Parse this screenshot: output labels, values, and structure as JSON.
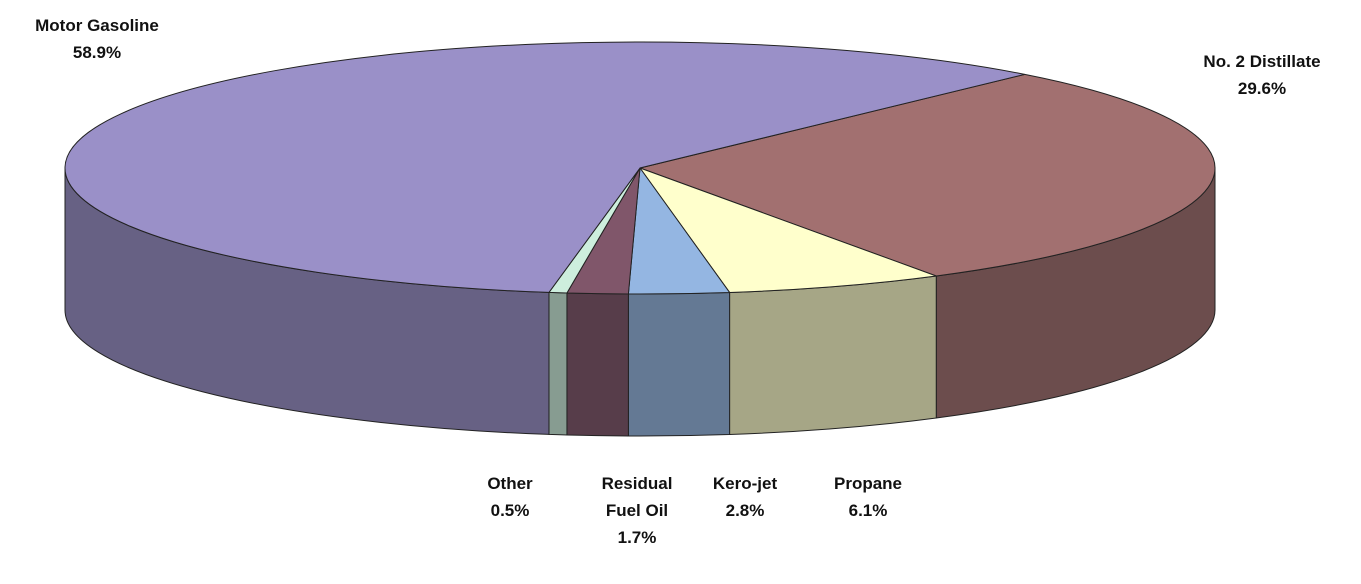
{
  "chart_data": {
    "type": "pie3d",
    "categories": [
      "No. 2 Distillate",
      "Propane",
      "Kero-jet",
      "Residual Fuel Oil",
      "Other",
      "Motor Gasoline"
    ],
    "values": [
      29.6,
      6.1,
      2.8,
      1.7,
      0.5,
      58.9
    ],
    "value_labels": [
      "29.6%",
      "6.1%",
      "2.8%",
      "1.7%",
      "0.5%",
      "58.9%"
    ],
    "colors": [
      "#a27070",
      "#ffffcc",
      "#94b6e2",
      "#80566a",
      "#cdeedd",
      "#9a90c8"
    ]
  }
}
